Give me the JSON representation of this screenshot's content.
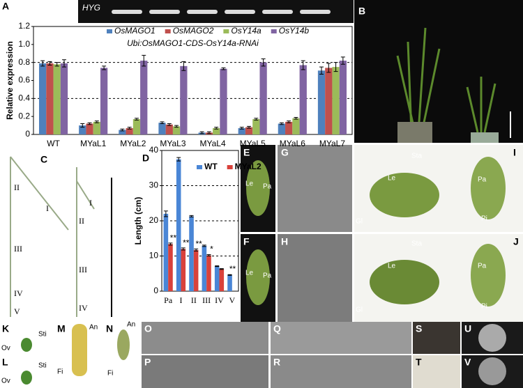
{
  "chart_data": [
    {
      "type": "bar",
      "title": "Ubi:OsMAGO1-CDS-OsY14a-RNAi",
      "y_label": "Relative expression",
      "categories": [
        "WT",
        "MYaL1",
        "MYaL2",
        "MYaL3",
        "MYaL4",
        "MYaL5",
        "MYaL6",
        "MYaL7"
      ],
      "series": [
        {
          "name": "OsMAGO1",
          "color": "#4f81bd",
          "values": [
            0.79,
            0.1,
            0.05,
            0.13,
            0.02,
            0.07,
            0.12,
            0.71
          ],
          "errors": [
            0.03,
            0.02,
            0.01,
            0.01,
            0.01,
            0.01,
            0.01,
            0.04
          ]
        },
        {
          "name": "OsMAGO2",
          "color": "#c0504d",
          "values": [
            0.79,
            0.12,
            0.07,
            0.11,
            0.02,
            0.08,
            0.14,
            0.74
          ],
          "errors": [
            0.02,
            0.01,
            0.01,
            0.01,
            0.01,
            0.01,
            0.01,
            0.05
          ]
        },
        {
          "name": "OsY14a",
          "color": "#9bbb59",
          "values": [
            0.78,
            0.14,
            0.17,
            0.09,
            0.07,
            0.17,
            0.18,
            0.75
          ],
          "errors": [
            0.02,
            0.01,
            0.01,
            0.01,
            0.01,
            0.01,
            0.01,
            0.05
          ]
        },
        {
          "name": "OsY14b",
          "color": "#8064a2",
          "values": [
            0.79,
            0.74,
            0.82,
            0.76,
            0.73,
            0.8,
            0.77,
            0.82
          ],
          "errors": [
            0.04,
            0.02,
            0.06,
            0.05,
            0.01,
            0.04,
            0.05,
            0.04
          ]
        }
      ],
      "ylim": [
        0,
        1.2
      ],
      "yticks": [
        0,
        0.2,
        0.4,
        0.6,
        0.8,
        {
          "value": 1.0,
          "label": "1.0"
        },
        1.2
      ],
      "reference_lines": [
        0.4,
        0.8
      ],
      "legend": "top"
    },
    {
      "type": "bar",
      "y_label": "Length (cm)",
      "categories": [
        "Pa",
        "I",
        "II",
        "III",
        "IV",
        "V"
      ],
      "series": [
        {
          "name": "WT",
          "color": "#4a86d6",
          "values": [
            22,
            37.5,
            21.3,
            12.9,
            7.1,
            4.6
          ],
          "errors": [
            0.8,
            0.5,
            0.2,
            0.2,
            0.1,
            0.1
          ],
          "significance": [
            null,
            null,
            null,
            null,
            null,
            "**"
          ]
        },
        {
          "name": "MYaL2",
          "color": "#d9413b",
          "values": [
            13.4,
            12.0,
            11.7,
            10.2,
            6.3,
            null
          ],
          "errors": [
            0.3,
            0.3,
            0.3,
            0.2,
            0.1,
            null
          ],
          "significance": [
            "**",
            "**",
            "**",
            "*",
            null,
            null
          ]
        }
      ],
      "ylim": [
        0,
        40
      ],
      "yticks": [
        0,
        10,
        20,
        30,
        40
      ],
      "reference_lines": [
        10,
        20,
        30
      ],
      "legend": "top-right"
    }
  ],
  "gel_label": "HYG",
  "panel_labels": [
    "A",
    "B",
    "C",
    "D",
    "E",
    "F",
    "G",
    "H",
    "I",
    "J",
    "K",
    "L",
    "M",
    "N",
    "O",
    "P",
    "Q",
    "R",
    "S",
    "T",
    "U",
    "V"
  ],
  "photo_annotations": {
    "C": [
      "II",
      "I",
      "III",
      "IV",
      "V",
      "I",
      "II",
      "III",
      "IV"
    ],
    "E": [
      "Le",
      "Pa"
    ],
    "F": [
      "Le",
      "Pa"
    ],
    "I": [
      "Sta",
      "Le",
      "Pa",
      "Pi",
      "Gl"
    ],
    "J": [
      "Sta",
      "Le",
      "Pa",
      "Pi",
      "Gl"
    ],
    "K": [
      "Ov",
      "Sti"
    ],
    "L": [
      "Ov",
      "Sti"
    ],
    "M": [
      "An",
      "Fi"
    ],
    "N": [
      "An",
      "Fi"
    ]
  }
}
